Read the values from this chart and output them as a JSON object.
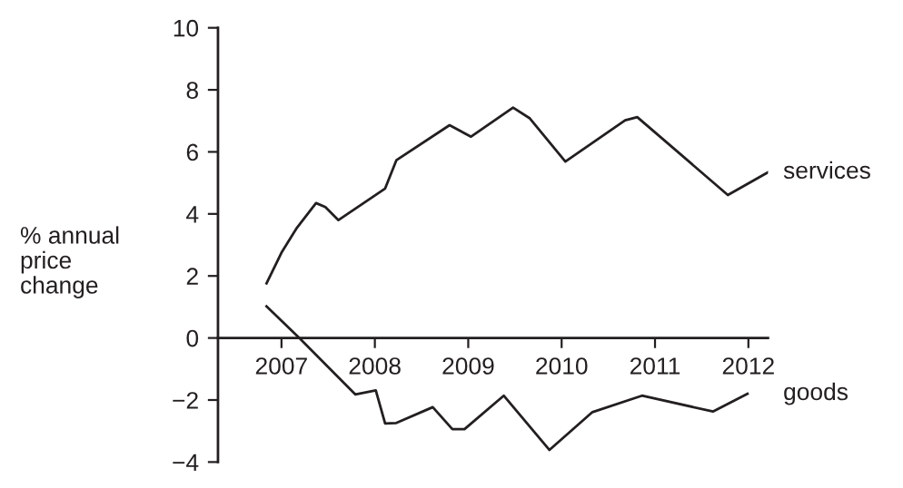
{
  "chart_data": {
    "type": "line",
    "ylabel": "% annual\nprice\nchange",
    "xlim": [
      2006.32,
      2012.21
    ],
    "xticks": [
      {
        "value": 2007,
        "label": "2007"
      },
      {
        "value": 2008,
        "label": "2008"
      },
      {
        "value": 2009,
        "label": "2009"
      },
      {
        "value": 2010,
        "label": "2010"
      },
      {
        "value": 2011,
        "label": "2011"
      },
      {
        "value": 2012,
        "label": "2012"
      }
    ],
    "ylim": [
      -4,
      10
    ],
    "yticks": [
      {
        "value": -4,
        "label": "−4"
      },
      {
        "value": -2,
        "label": "−2"
      },
      0,
      2,
      4,
      6,
      8,
      10
    ],
    "grid": false,
    "legend": false,
    "marker": "none",
    "line_style": "solid",
    "series": [
      {
        "name": "services",
        "color": "#231f20",
        "x": [
          2006.84,
          2007.0,
          2007.16,
          2007.37,
          2007.47,
          2007.61,
          2008.11,
          2008.23,
          2008.8,
          2009.03,
          2009.48,
          2009.66,
          2010.04,
          2010.68,
          2010.81,
          2011.78,
          2012.21
        ],
        "values": [
          1.76,
          2.75,
          3.53,
          4.35,
          4.22,
          3.8,
          4.82,
          5.73,
          6.86,
          6.49,
          7.43,
          7.08,
          5.69,
          7.02,
          7.12,
          4.61,
          5.34
        ]
      },
      {
        "name": "goods",
        "color": "#231f20",
        "x": [
          2006.84,
          2007.19,
          2007.79,
          2008.01,
          2008.11,
          2008.23,
          2008.62,
          2008.83,
          2008.96,
          2009.38,
          2009.87,
          2010.33,
          2010.86,
          2011.62,
          2011.99
        ],
        "values": [
          1.02,
          0.0,
          -1.82,
          -1.69,
          -2.76,
          -2.74,
          -2.23,
          -2.94,
          -2.94,
          -1.86,
          -3.61,
          -2.39,
          -1.86,
          -2.37,
          -1.8
        ]
      }
    ]
  }
}
